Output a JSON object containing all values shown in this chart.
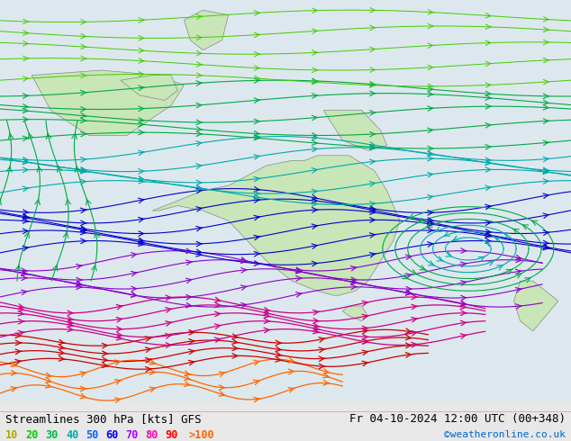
{
  "title_left": "Streamlines 300 hPa [kts] GFS",
  "title_right": "Fr 04-10-2024 12:00 UTC (00+348)",
  "credit": "©weatheronline.co.uk",
  "legend_values": [
    "10",
    "20",
    "30",
    "40",
    "50",
    "60",
    "70",
    "80",
    "90",
    ">100"
  ],
  "legend_colors": [
    "#aaaa00",
    "#00cc00",
    "#00bb44",
    "#00aaaa",
    "#0066ff",
    "#0000ff",
    "#aa00ff",
    "#ff00aa",
    "#ff0000",
    "#ff6600"
  ],
  "background_color": "#e8e8e8",
  "map_bg_color": "#e0e0e8",
  "land_color": "#d4edcc",
  "figsize": [
    6.34,
    4.9
  ],
  "dpi": 100
}
